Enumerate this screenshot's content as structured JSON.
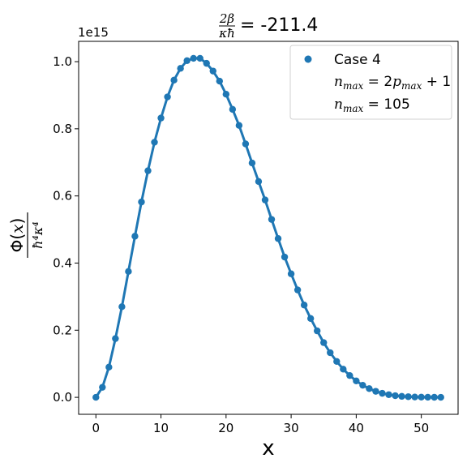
{
  "chart_data": {
    "type": "line",
    "title_prefix": "2β / κħ",
    "title_value": "= -211.4",
    "xlabel": "x",
    "ylabel": "Φ(x) / ħ⁴κ⁴",
    "y_offset_label": "1e15",
    "xlim": [
      -2.65,
      55.65
    ],
    "ylim": [
      -0.0505,
      1.0605
    ],
    "x_ticks": [
      0,
      10,
      20,
      30,
      40,
      50
    ],
    "y_ticks": [
      0.0,
      0.2,
      0.4,
      0.6,
      0.8,
      1.0
    ],
    "x_tick_labels": [
      "0",
      "10",
      "20",
      "30",
      "40",
      "50"
    ],
    "y_tick_labels": [
      "0.0",
      "0.2",
      "0.4",
      "0.6",
      "0.8",
      "1.0"
    ],
    "grid": false,
    "legend_position": "top-right",
    "legend": {
      "series_label": "Case 4",
      "line2": "n_max = 2p_max + 1",
      "line3": "n_max = 105"
    },
    "color": "#1f77b4",
    "series": [
      {
        "name": "Case 4",
        "x": [
          0,
          1,
          2,
          3,
          4,
          5,
          6,
          7,
          8,
          9,
          10,
          11,
          12,
          13,
          14,
          15,
          16,
          17,
          18,
          19,
          20,
          21,
          22,
          23,
          24,
          25,
          26,
          27,
          28,
          29,
          30,
          31,
          32,
          33,
          34,
          35,
          36,
          37,
          38,
          39,
          40,
          41,
          42,
          43,
          44,
          45,
          46,
          47,
          48,
          49,
          50,
          51,
          52,
          53
        ],
        "y": [
          0.0,
          0.03,
          0.09,
          0.175,
          0.27,
          0.375,
          0.48,
          0.582,
          0.675,
          0.76,
          0.832,
          0.895,
          0.945,
          0.98,
          1.003,
          1.01,
          1.01,
          0.995,
          0.972,
          0.942,
          0.903,
          0.858,
          0.81,
          0.755,
          0.698,
          0.643,
          0.588,
          0.53,
          0.473,
          0.418,
          0.368,
          0.32,
          0.275,
          0.235,
          0.198,
          0.163,
          0.133,
          0.107,
          0.084,
          0.065,
          0.049,
          0.036,
          0.026,
          0.018,
          0.012,
          0.008,
          0.005,
          0.003,
          0.002,
          0.001,
          0.0007,
          0.0004,
          0.0002,
          0.0001
        ]
      }
    ]
  }
}
